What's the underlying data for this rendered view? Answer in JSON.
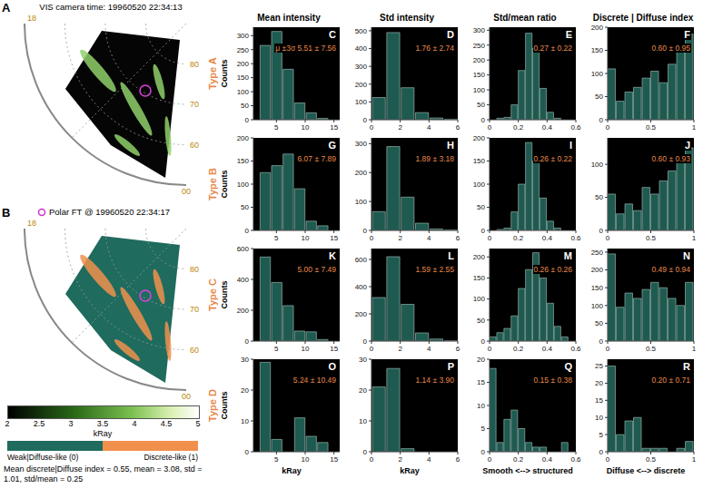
{
  "maps": [
    {
      "label": "A",
      "title": "VIS camera time: 19960520 22:34:13",
      "lat_range": [
        90,
        50
      ],
      "rings": [
        80,
        70,
        60
      ],
      "mlt_labels": [
        "18",
        "00"
      ],
      "type": "intensity"
    },
    {
      "label": "B",
      "title": "Polar FT @ 19960520 22:34:17",
      "lat_range": [
        90,
        50
      ],
      "rings": [
        80,
        70,
        60
      ],
      "mlt_labels": [
        "18",
        "00"
      ],
      "type": "class"
    }
  ],
  "colorbar": {
    "label": "kRay",
    "range": [
      2,
      5
    ],
    "ticks": [
      2,
      2.5,
      3,
      3.5,
      4,
      4.5,
      5
    ]
  },
  "classes": [
    "Weak|Diffuse-like (0)",
    "Discrete-like (1)"
  ],
  "summary": "Mean discrete|Diffuse index = 0.55, mean = 3.08, std = 1.01, std/mean = 0.25",
  "rows": [
    "Type A",
    "Type B",
    "Type C",
    "Type D"
  ],
  "y_label": "Counts",
  "columns": [
    {
      "title": "Mean intensity",
      "x_label": "kRay"
    },
    {
      "title": "Std intensity",
      "x_label": "kRay"
    },
    {
      "title": "Std/mean ratio",
      "x_label": "Smooth <--> structured"
    },
    {
      "title": "Discrete | Diffuse index",
      "x_label": "Diffuse <--> discrete"
    }
  ],
  "chart_data": [
    {
      "type": "histogram",
      "label": "C",
      "annotation": "μ ±3σ 5.51 ± 7.56",
      "color": "#1f5a50",
      "bins": [
        2,
        4,
        6,
        8,
        10,
        12,
        14
      ],
      "values": [
        265,
        315,
        180,
        60,
        25,
        5
      ],
      "xlim": [
        1,
        16
      ],
      "xticks": [
        5,
        10,
        15
      ],
      "ylim": [
        0,
        330
      ],
      "yticks": [
        0,
        50,
        100,
        150,
        200,
        250,
        300
      ]
    },
    {
      "type": "histogram",
      "label": "D",
      "annotation": "1.76 ± 2.74",
      "color": "#1f5a50",
      "bins": [
        0,
        1,
        2,
        3,
        4,
        5,
        6
      ],
      "values": [
        125,
        490,
        180,
        40,
        10,
        3
      ],
      "xlim": [
        0,
        6
      ],
      "xticks": [
        0,
        2,
        4,
        6
      ],
      "ylim": [
        0,
        520
      ],
      "yticks": [
        0,
        100,
        200,
        300,
        400,
        500
      ]
    },
    {
      "type": "histogram",
      "label": "E",
      "annotation": "0.27 ± 0.22",
      "color": "#1f5a50",
      "bins": [
        0,
        0.05,
        0.1,
        0.15,
        0.2,
        0.25,
        0.3,
        0.35,
        0.4,
        0.45,
        0.5,
        0.55,
        0.6
      ],
      "values": [
        0,
        5,
        8,
        50,
        165,
        290,
        240,
        105,
        25,
        5,
        0,
        0
      ],
      "xlim": [
        0,
        0.6
      ],
      "xticks": [
        0,
        0.2,
        0.4,
        0.6
      ],
      "ylim": [
        0,
        310
      ],
      "yticks": [
        0,
        50,
        100,
        150,
        200,
        250,
        300
      ]
    },
    {
      "type": "histogram",
      "label": "F",
      "annotation": "0.60 ± 0.95",
      "color": "#1f5a50",
      "bins": [
        0,
        0.1,
        0.2,
        0.3,
        0.4,
        0.5,
        0.6,
        0.7,
        0.8,
        0.9,
        1
      ],
      "values": [
        110,
        40,
        60,
        70,
        90,
        105,
        80,
        120,
        150,
        185
      ],
      "xlim": [
        0,
        1
      ],
      "xticks": [
        0,
        0.5,
        1
      ],
      "ylim": [
        0,
        200
      ],
      "yticks": [
        0,
        50,
        100,
        150,
        200
      ]
    },
    {
      "type": "histogram",
      "label": "G",
      "annotation": "6.07 ± 7.89",
      "color": "#1f5a50",
      "bins": [
        2,
        4,
        6,
        8,
        10,
        12,
        14
      ],
      "values": [
        125,
        140,
        165,
        90,
        20,
        10
      ],
      "xlim": [
        1,
        16
      ],
      "xticks": [
        5,
        10,
        15
      ],
      "ylim": [
        0,
        200
      ],
      "yticks": [
        0,
        50,
        100,
        150,
        200
      ]
    },
    {
      "type": "histogram",
      "label": "H",
      "annotation": "1.89 ± 3.18",
      "color": "#1f5a50",
      "bins": [
        0,
        1,
        2,
        3,
        4,
        5,
        6
      ],
      "values": [
        65,
        290,
        115,
        25,
        5,
        2
      ],
      "xlim": [
        0,
        6
      ],
      "xticks": [
        0,
        2,
        4,
        6
      ],
      "ylim": [
        0,
        320
      ],
      "yticks": [
        0,
        100,
        200,
        300
      ]
    },
    {
      "type": "histogram",
      "label": "I",
      "annotation": "0.26 ± 0.22",
      "color": "#1f5a50",
      "bins": [
        0,
        0.05,
        0.1,
        0.15,
        0.2,
        0.25,
        0.3,
        0.35,
        0.4,
        0.45,
        0.5,
        0.55,
        0.6
      ],
      "values": [
        0,
        2,
        5,
        40,
        100,
        190,
        150,
        70,
        20,
        5,
        0,
        0
      ],
      "xlim": [
        0,
        0.6
      ],
      "xticks": [
        0,
        0.2,
        0.4,
        0.6
      ],
      "ylim": [
        0,
        200
      ],
      "yticks": [
        0,
        50,
        100,
        150,
        200
      ]
    },
    {
      "type": "histogram",
      "label": "J",
      "annotation": "0.60 ± 0.93",
      "color": "#1f5a50",
      "bins": [
        0,
        0.1,
        0.2,
        0.3,
        0.4,
        0.5,
        0.6,
        0.7,
        0.8,
        0.9,
        1
      ],
      "values": [
        55,
        25,
        40,
        30,
        65,
        55,
        75,
        90,
        110,
        125
      ],
      "xlim": [
        0,
        1
      ],
      "xticks": [
        0,
        0.5,
        1
      ],
      "ylim": [
        0,
        140
      ],
      "yticks": [
        0,
        50,
        100
      ]
    },
    {
      "type": "histogram",
      "label": "K",
      "annotation": "5.00 ± 7.49",
      "color": "#1f5a50",
      "bins": [
        2,
        4,
        6,
        8,
        10,
        12,
        14
      ],
      "values": [
        545,
        380,
        230,
        65,
        60,
        10
      ],
      "xlim": [
        1,
        16
      ],
      "xticks": [
        5,
        10,
        15
      ],
      "ylim": [
        0,
        600
      ],
      "yticks": [
        0,
        200,
        400,
        600
      ]
    },
    {
      "type": "histogram",
      "label": "L",
      "annotation": "1.59 ± 2.55",
      "color": "#1f5a50",
      "bins": [
        0,
        1,
        2,
        3,
        4,
        5,
        6
      ],
      "values": [
        320,
        620,
        270,
        60,
        15,
        2
      ],
      "xlim": [
        0,
        6
      ],
      "xticks": [
        0,
        2,
        4,
        6
      ],
      "ylim": [
        0,
        680
      ],
      "yticks": [
        0,
        200,
        400,
        600
      ]
    },
    {
      "type": "histogram",
      "label": "M",
      "annotation": "0.26 ± 0.26",
      "color": "#1f5a50",
      "bins": [
        0,
        0.05,
        0.1,
        0.15,
        0.2,
        0.25,
        0.3,
        0.35,
        0.4,
        0.45,
        0.5,
        0.55,
        0.6
      ],
      "values": [
        10,
        20,
        30,
        60,
        125,
        170,
        210,
        150,
        90,
        35,
        10,
        0
      ],
      "xlim": [
        0,
        0.6
      ],
      "xticks": [
        0,
        0.2,
        0.4,
        0.6
      ],
      "ylim": [
        0,
        220
      ],
      "yticks": [
        0,
        50,
        100,
        150,
        200
      ]
    },
    {
      "type": "histogram",
      "label": "N",
      "annotation": "0.49 ± 0.94",
      "color": "#1f5a50",
      "bins": [
        0,
        0.1,
        0.2,
        0.3,
        0.4,
        0.5,
        0.6,
        0.7,
        0.8,
        0.9,
        1
      ],
      "values": [
        245,
        95,
        135,
        120,
        145,
        165,
        150,
        120,
        100,
        165
      ],
      "xlim": [
        0,
        1
      ],
      "xticks": [
        0,
        0.5,
        1
      ],
      "ylim": [
        0,
        260
      ],
      "yticks": [
        0,
        50,
        100,
        150,
        200,
        250
      ]
    },
    {
      "type": "histogram",
      "label": "O",
      "annotation": "5.24 ± 10.49",
      "color": "#1f5a50",
      "bins": [
        2,
        4,
        6,
        8,
        10,
        12,
        14
      ],
      "values": [
        29,
        4,
        0,
        11,
        5,
        3
      ],
      "xlim": [
        1,
        16
      ],
      "xticks": [
        5,
        10,
        15
      ],
      "ylim": [
        0,
        30
      ],
      "yticks": [
        0,
        10,
        20,
        30
      ]
    },
    {
      "type": "histogram",
      "label": "P",
      "annotation": "1.14 ± 3.90",
      "color": "#1f5a50",
      "bins": [
        0,
        1,
        2,
        3,
        4,
        5,
        6
      ],
      "values": [
        21,
        27,
        1,
        0,
        0,
        0
      ],
      "xlim": [
        0,
        6
      ],
      "xticks": [
        0,
        2,
        4,
        6
      ],
      "ylim": [
        0,
        30
      ],
      "yticks": [
        0,
        10,
        20,
        30
      ]
    },
    {
      "type": "histogram",
      "label": "Q",
      "annotation": "0.15 ± 0.38",
      "color": "#1f5a50",
      "bins": [
        0,
        0.05,
        0.1,
        0.15,
        0.2,
        0.25,
        0.3,
        0.35,
        0.4,
        0.45,
        0.5,
        0.55,
        0.6
      ],
      "values": [
        18,
        2,
        7,
        9,
        5,
        2,
        1,
        1,
        0,
        0,
        2,
        0
      ],
      "xlim": [
        0,
        0.6
      ],
      "xticks": [
        0,
        0.2,
        0.4,
        0.6
      ],
      "ylim": [
        0,
        20
      ],
      "yticks": [
        0,
        5,
        10,
        15,
        20
      ]
    },
    {
      "type": "histogram",
      "label": "R",
      "annotation": "0.20 ± 0.71",
      "color": "#1f5a50",
      "bins": [
        0,
        0.1,
        0.2,
        0.3,
        0.4,
        0.5,
        0.6,
        0.7,
        0.8,
        0.9,
        1
      ],
      "values": [
        25,
        5,
        9,
        10,
        1,
        1,
        1,
        0,
        1,
        3
      ],
      "xlim": [
        0,
        1
      ],
      "xticks": [
        0,
        0.5,
        1
      ],
      "ylim": [
        0,
        27
      ],
      "yticks": [
        0,
        5,
        10,
        15,
        20,
        25
      ]
    }
  ]
}
